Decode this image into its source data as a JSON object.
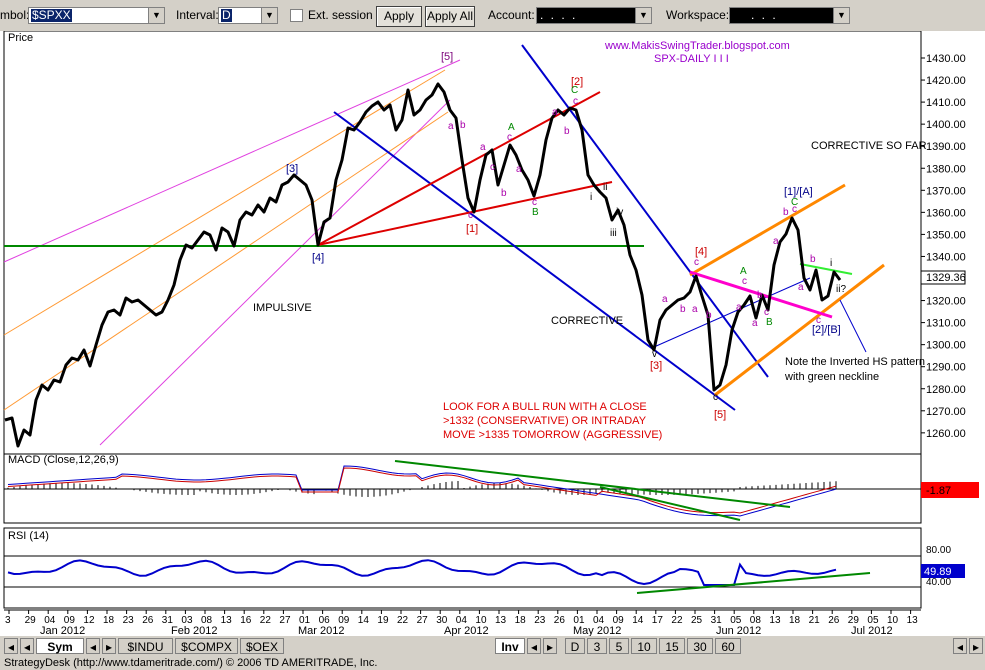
{
  "toolbar": {
    "symbol_label": "mbol:",
    "symbol_value": "$SPXX",
    "interval_label": "Interval:",
    "interval_value": "D",
    "ext_session_label": "Ext. session",
    "apply_label": "Apply",
    "apply_all_label": "Apply All",
    "account_label": "Account:",
    "account_value": ".  .  .  .",
    "workspace_label": "Workspace:",
    "workspace_value": ".  .  ."
  },
  "price_panel": {
    "label": "Price",
    "watermark_url": "www.MakisSwingTrader.blogspot.com",
    "watermark_title": "SPX-DAILY I I I",
    "last_price": "1329.36",
    "price_ticks": [
      "1430.00",
      "1420.00",
      "1410.00",
      "1400.00",
      "1390.00",
      "1380.00",
      "1370.00",
      "1360.00",
      "1350.00",
      "1340.00",
      "1330.00",
      "1320.00",
      "1310.00",
      "1300.00",
      "1290.00",
      "1280.00",
      "1270.00",
      "1260.00"
    ],
    "annotations": {
      "impulsive": "IMPULSIVE",
      "corrective": "CORRECTIVE",
      "corrective_so_far": "CORRECTIVE SO FAR",
      "bull_run_1": "LOOK FOR A BULL RUN WITH A CLOSE",
      "bull_run_2": ">1332 (CONSERVATIVE) OR INTRADAY",
      "bull_run_3": "MOVE >1335 TOMORROW (AGGRESSIVE)",
      "hs_note_1": "Note the Inverted HS pattern",
      "hs_note_2": "with green neckline"
    },
    "wave_labels": {
      "w5_top": "[5]",
      "w3": "[3]",
      "w4": "[4]",
      "w1": "[1]",
      "w2": "[2]",
      "w3_low": "[3]",
      "w4_mid": "[4]",
      "w5_low": "[5]",
      "w1A": "[1]/[A]",
      "w2B": "[2]/[B]",
      "a": "a",
      "b": "b",
      "c": "c",
      "A": "A",
      "B": "B",
      "C": "C",
      "i": "i",
      "ii": "ii",
      "iii": "iii",
      "iv": "iv",
      "v": "v",
      "ii_q": "ii?"
    }
  },
  "macd_panel": {
    "label": "MACD (Close,12,26,9)",
    "value": "-1.87"
  },
  "rsi_panel": {
    "label": "RSI (14)",
    "tick_80": "80.00",
    "tick_40": "40.00",
    "value": "49.89"
  },
  "date_axis": {
    "day_ticks": [
      "3",
      "29",
      "04",
      "09",
      "12",
      "18",
      "23",
      "26",
      "31",
      "03",
      "08",
      "13",
      "16",
      "22",
      "27",
      "01",
      "06",
      "09",
      "14",
      "19",
      "22",
      "27",
      "30",
      "04",
      "10",
      "13",
      "18",
      "23",
      "26",
      "01",
      "04",
      "09",
      "14",
      "17",
      "22",
      "25",
      "31",
      "05",
      "08",
      "13",
      "18",
      "21",
      "26",
      "29",
      "05",
      "10",
      "13"
    ],
    "month_labels": [
      "Jan 2012",
      "Feb 2012",
      "Mar 2012",
      "Apr 2012",
      "May 2012",
      "Jun 2012",
      "Jul 2012"
    ]
  },
  "bottom_tabs": {
    "sym": "Sym",
    "indu": "$INDU",
    "compx": "$COMPX",
    "oex": "$OEX",
    "inv": "Inv",
    "d": "D",
    "t3": "3",
    "t5": "5",
    "t10": "10",
    "t15": "15",
    "t30": "30",
    "t60": "60"
  },
  "status": {
    "text": "StrategyDesk (http://www.tdameritrade.com/) © 2006 TD AMERITRADE, Inc."
  }
}
